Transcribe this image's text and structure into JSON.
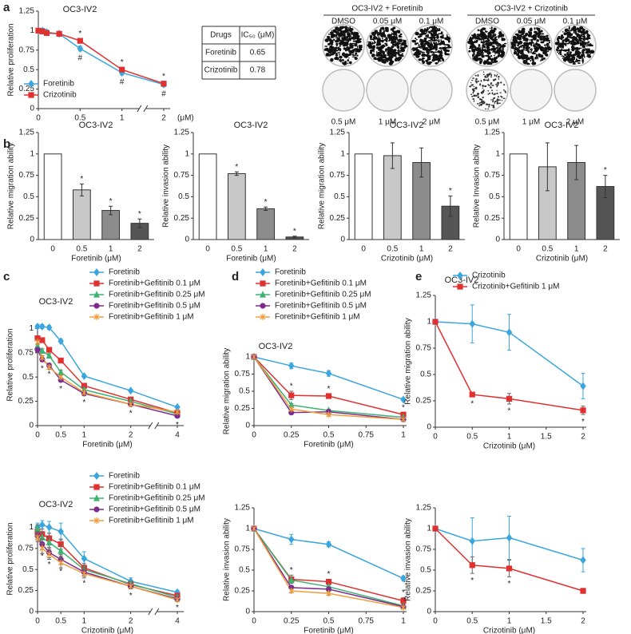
{
  "panels": [
    "a",
    "b",
    "c",
    "d",
    "e"
  ],
  "table": {
    "header": [
      "Drugs",
      "IC₅₀ (μM)"
    ],
    "rows": [
      [
        "Foretinib",
        0.65
      ],
      [
        "Crizotinib",
        0.78
      ]
    ]
  },
  "plates": {
    "groups": [
      {
        "title": "OC3-IV2 + Foretinib",
        "top_labels": [
          "DMSO",
          "0.05 μM",
          "0.1 μM"
        ],
        "bottom_labels": [
          "0.5 μM",
          "1 μM",
          "2 μM"
        ]
      },
      {
        "title": "OC3-IV2 + Crizotinib",
        "top_labels": [
          "DMSO",
          "0.05 μM",
          "0.1 μM"
        ],
        "bottom_labels": [
          "0.5 μM",
          "1 μM",
          "2 μM"
        ]
      }
    ]
  },
  "chart_data": [
    {
      "type": "line",
      "title": "OC3-IV2",
      "ylabel": "Relative proliferation",
      "xlabel": "(μM)",
      "legend": "lower left",
      "axis_break": true,
      "x": [
        0,
        0.05,
        0.1,
        0.25,
        0.5,
        1,
        2
      ],
      "xlim": [
        0,
        2
      ],
      "xticks": [
        0,
        0.5,
        1,
        2
      ],
      "ylim": [
        0,
        1.25
      ],
      "yticks": [
        0,
        0.25,
        0.5,
        0.75,
        1,
        1.25
      ],
      "series": [
        {
          "name": "Foretinib",
          "color": "#3aa6dd",
          "marker": "diamond",
          "annotation_position": "below",
          "values": [
            1.0,
            1.0,
            0.98,
            0.96,
            0.77,
            0.46,
            0.31
          ],
          "errors": [
            0.03,
            0.03,
            0.03,
            0.03,
            0.03,
            0.03,
            0.03
          ],
          "annotations": [
            null,
            null,
            null,
            null,
            "#",
            "#",
            "#"
          ]
        },
        {
          "name": "Crizotinib",
          "color": "#e03030",
          "marker": "square",
          "annotation_position": "above",
          "values": [
            1.0,
            0.99,
            0.97,
            0.96,
            0.87,
            0.5,
            0.32
          ],
          "errors": [
            0.03,
            0.03,
            0.03,
            0.03,
            0.03,
            0.03,
            0.03
          ],
          "annotations": [
            null,
            null,
            null,
            null,
            "*",
            "*",
            "*"
          ]
        }
      ]
    },
    {
      "type": "bar",
      "title": "OC3-IV2",
      "ylabel": "Relative migration ability",
      "xlabel": "Foretinib (μM)",
      "categories": [
        "0",
        "0.5",
        "1",
        "2"
      ],
      "values": [
        1,
        0.58,
        0.34,
        0.19
      ],
      "errors": [
        0,
        0.07,
        0.05,
        0.05
      ],
      "annotations": [
        null,
        "*",
        "*",
        "*"
      ],
      "colors": [
        "#ffffff",
        "#c8c8c8",
        "#8c8c8c",
        "#555555"
      ],
      "ylim": [
        0,
        1.25
      ],
      "yticks": [
        0,
        0.25,
        0.5,
        0.75,
        1,
        1.25
      ]
    },
    {
      "type": "bar",
      "title": "OC3-IV2",
      "ylabel": "Relative invasion ability",
      "xlabel": "Foretinib (μM)",
      "categories": [
        "0",
        "0.5",
        "1",
        "2"
      ],
      "values": [
        1,
        0.77,
        0.36,
        0.03
      ],
      "errors": [
        0,
        0.02,
        0.02,
        0.01
      ],
      "annotations": [
        null,
        "*",
        "*",
        "*"
      ],
      "colors": [
        "#ffffff",
        "#c8c8c8",
        "#8c8c8c",
        "#555555"
      ],
      "ylim": [
        0,
        1.25
      ],
      "yticks": [
        0,
        0.25,
        0.5,
        0.75,
        1,
        1.25
      ]
    },
    {
      "type": "bar",
      "title": "OC3-IV2",
      "ylabel": "Relative migration ability",
      "xlabel": "Crizotinib (μM)",
      "categories": [
        "0",
        "0.5",
        "1",
        "2"
      ],
      "values": [
        1,
        0.98,
        0.9,
        0.39
      ],
      "errors": [
        0,
        0.15,
        0.17,
        0.12
      ],
      "annotations": [
        null,
        null,
        null,
        "*"
      ],
      "colors": [
        "#ffffff",
        "#c8c8c8",
        "#8c8c8c",
        "#555555"
      ],
      "ylim": [
        0,
        1.25
      ],
      "yticks": [
        0,
        0.25,
        0.5,
        0.75,
        1,
        1.25
      ]
    },
    {
      "type": "bar",
      "title": "OC3-IV2",
      "ylabel": "Relative Invasion ability",
      "xlabel": "Crizotinib (μM)",
      "categories": [
        "0",
        "0.5",
        "1",
        "2"
      ],
      "values": [
        1,
        0.85,
        0.9,
        0.62
      ],
      "errors": [
        0,
        0.28,
        0.2,
        0.13
      ],
      "annotations": [
        null,
        null,
        null,
        "*"
      ],
      "colors": [
        "#ffffff",
        "#c8c8c8",
        "#8c8c8c",
        "#555555"
      ],
      "ylim": [
        0,
        1.25
      ],
      "yticks": [
        0,
        0.25,
        0.5,
        0.75,
        1,
        1.25
      ]
    },
    {
      "type": "line",
      "title": "OC3-IV2",
      "ylabel": "Relative proliferation",
      "xlabel": "Foretinib (μM)",
      "legend": "above",
      "axis_break": true,
      "x": [
        0,
        0.1,
        0.25,
        0.5,
        1,
        2,
        4
      ],
      "xlim": [
        0,
        4
      ],
      "xticks": [
        0,
        0.5,
        1,
        2,
        4
      ],
      "ylim": [
        0,
        1.25
      ],
      "yticks": [
        0,
        0.25,
        0.5,
        0.75,
        1
      ],
      "series": [
        {
          "name": "Foretinib",
          "color": "#3aa6dd",
          "marker": "diamond",
          "values": [
            1.02,
            1.02,
            1.01,
            0.87,
            0.51,
            0.36,
            0.19
          ],
          "errors": [
            0.02,
            0.02,
            0.02,
            0.02,
            0.01,
            0.01,
            0.01
          ]
        },
        {
          "name": "Foretinib+Gefitinib 0.1 μM",
          "color": "#e03030",
          "marker": "square",
          "values": [
            0.9,
            0.88,
            0.78,
            0.67,
            0.41,
            0.27,
            0.13
          ],
          "errors": [
            0.02,
            0.02,
            0.02,
            0.02,
            0.02,
            0.02,
            0.02
          ]
        },
        {
          "name": "Foretinib+Gefitinib 0.25 μM",
          "color": "#3cb371",
          "marker": "triangle",
          "values": [
            0.82,
            0.77,
            0.72,
            0.55,
            0.37,
            0.25,
            0.12
          ],
          "errors": [
            0.02,
            0.02,
            0.02,
            0.02,
            0.02,
            0.02,
            0.02
          ]
        },
        {
          "name": "Foretinib+Gefitinib 0.5 μM",
          "color": "#7b2d8e",
          "marker": "circle",
          "annotation_position": "below",
          "values": [
            0.78,
            0.68,
            0.62,
            0.47,
            0.33,
            0.22,
            0.1
          ],
          "errors": [
            0.02,
            0.02,
            0.02,
            0.02,
            0.02,
            0.02,
            0.02
          ],
          "annotations": [
            null,
            "*",
            "*",
            "*",
            "*",
            "*",
            "*"
          ]
        },
        {
          "name": "Foretinib+Gefitinib 1 μM",
          "color": "#f39c3c",
          "marker": "cross",
          "values": [
            0.86,
            0.7,
            0.6,
            0.5,
            0.34,
            0.22,
            0.14
          ],
          "errors": [
            0.02,
            0.02,
            0.02,
            0.02,
            0.02,
            0.02,
            0.02
          ]
        }
      ]
    },
    {
      "type": "line",
      "title": "OC3-IV2",
      "ylabel": "Relative migration ability",
      "xlabel": "Foretinib (μM)",
      "legend": "above",
      "x": [
        0,
        0.25,
        0.5,
        1
      ],
      "xlim": [
        0,
        1
      ],
      "xticks": [
        0,
        0.25,
        0.5,
        0.75,
        1
      ],
      "ylim": [
        0,
        1
      ],
      "yticks": [
        0,
        0.25,
        0.5,
        0.75,
        1
      ],
      "series": [
        {
          "name": "Foretinib",
          "color": "#3aa6dd",
          "marker": "diamond",
          "values": [
            1,
            0.87,
            0.76,
            0.38
          ],
          "errors": [
            0,
            0.04,
            0.04,
            0.02
          ]
        },
        {
          "name": "Foretinib+Gefitinib 0.1 μM",
          "color": "#e03030",
          "marker": "square",
          "annotation_position": "above",
          "values": [
            1,
            0.44,
            0.43,
            0.16
          ],
          "errors": [
            0,
            0.06,
            0.03,
            0.03
          ],
          "annotations": [
            null,
            "*",
            "*",
            "*"
          ]
        },
        {
          "name": "Foretinib+Gefitinib 0.25 μM",
          "color": "#3cb371",
          "marker": "triangle",
          "values": [
            1,
            0.3,
            0.22,
            0.12
          ],
          "errors": [
            0,
            0.02,
            0.02,
            0.01
          ]
        },
        {
          "name": "Foretinib+Gefitinib 0.5 μM",
          "color": "#7b2d8e",
          "marker": "circle",
          "values": [
            1,
            0.19,
            0.2,
            0.09
          ],
          "errors": [
            0,
            0.02,
            0.02,
            0.01
          ]
        },
        {
          "name": "Foretinib+Gefitinib 1 μM",
          "color": "#f39c3c",
          "marker": "cross",
          "values": [
            1,
            0.24,
            0.16,
            0.09
          ],
          "errors": [
            0,
            0.02,
            0.02,
            0.01
          ]
        }
      ]
    },
    {
      "type": "line",
      "title": "OC3-IV2",
      "ylabel": "Relative migration ability",
      "xlabel": "Crizotinib (μM)",
      "legend": "above",
      "x": [
        0,
        0.5,
        1,
        2
      ],
      "xlim": [
        0,
        2
      ],
      "xticks": [
        0,
        0.5,
        1,
        1.5,
        2
      ],
      "ylim": [
        0,
        1.25
      ],
      "yticks": [
        0,
        0.25,
        0.5,
        0.75,
        1,
        1.25
      ],
      "series": [
        {
          "name": "Crizotinib",
          "color": "#3aa6dd",
          "marker": "diamond",
          "values": [
            1,
            0.98,
            0.9,
            0.39
          ],
          "errors": [
            0,
            0.18,
            0.17,
            0.12
          ]
        },
        {
          "name": "Crizotinib+Gefitinib 1 μM",
          "color": "#e03030",
          "marker": "square",
          "annotation_position": "below",
          "values": [
            1,
            0.31,
            0.27,
            0.16
          ],
          "errors": [
            0,
            0.02,
            0.05,
            0.04
          ],
          "annotations": [
            null,
            "*",
            "*",
            "*"
          ]
        }
      ]
    },
    {
      "type": "line",
      "title": "OC3-IV2",
      "ylabel": "Relative proliferation",
      "xlabel": "Crizotinib (μM)",
      "legend": "above",
      "axis_break": true,
      "x": [
        0,
        0.1,
        0.25,
        0.5,
        1,
        2,
        4
      ],
      "xlim": [
        0,
        4
      ],
      "xticks": [
        0,
        0.5,
        1,
        2,
        4
      ],
      "ylim": [
        0,
        1.25
      ],
      "yticks": [
        0,
        0.25,
        0.5,
        0.75,
        1
      ],
      "series": [
        {
          "name": "Foretinib",
          "color": "#3aa6dd",
          "marker": "diamond",
          "values": [
            1.0,
            1.03,
            1.0,
            0.95,
            0.63,
            0.36,
            0.23
          ],
          "errors": [
            0.05,
            0.05,
            0.07,
            0.1,
            0.08,
            0.04,
            0.02
          ]
        },
        {
          "name": "Foretinib+Gefitinib 0.1 μM",
          "color": "#e03030",
          "marker": "square",
          "values": [
            0.95,
            0.92,
            0.87,
            0.8,
            0.52,
            0.32,
            0.19
          ],
          "errors": [
            0.05,
            0.06,
            0.06,
            0.06,
            0.05,
            0.03,
            0.02
          ]
        },
        {
          "name": "Foretinib+Gefitinib 0.25 μM",
          "color": "#3cb371",
          "marker": "triangle",
          "values": [
            0.98,
            0.88,
            0.82,
            0.72,
            0.5,
            0.33,
            0.17
          ],
          "errors": [
            0.05,
            0.06,
            0.06,
            0.06,
            0.05,
            0.03,
            0.02
          ]
        },
        {
          "name": "Foretinib+Gefitinib 0.5 μM",
          "color": "#7b2d8e",
          "marker": "circle",
          "annotation_position": "below",
          "values": [
            0.9,
            0.8,
            0.7,
            0.62,
            0.47,
            0.3,
            0.15
          ],
          "errors": [
            0.05,
            0.06,
            0.06,
            0.06,
            0.05,
            0.03,
            0.02
          ],
          "annotations": [
            null,
            "*",
            "*",
            "*",
            "*",
            "*",
            "*"
          ]
        },
        {
          "name": "Foretinib+Gefitinib 1 μM",
          "color": "#f39c3c",
          "marker": "cross",
          "values": [
            0.88,
            0.75,
            0.68,
            0.58,
            0.45,
            0.3,
            0.14
          ],
          "errors": [
            0.05,
            0.06,
            0.06,
            0.06,
            0.05,
            0.03,
            0.02
          ]
        }
      ]
    },
    {
      "type": "line",
      "ylabel": "Relative invasion ability",
      "xlabel": "Foretinib (μM)",
      "x": [
        0,
        0.25,
        0.5,
        1
      ],
      "xlim": [
        0,
        1
      ],
      "xticks": [
        0,
        0.25,
        0.5,
        0.75,
        1
      ],
      "ylim": [
        0,
        1.25
      ],
      "yticks": [
        0,
        0.25,
        0.5,
        0.75,
        1,
        1.25
      ],
      "series": [
        {
          "name": "Foretinib",
          "color": "#3aa6dd",
          "marker": "diamond",
          "values": [
            1,
            0.87,
            0.81,
            0.4
          ],
          "errors": [
            0,
            0.06,
            0.03,
            0.03
          ]
        },
        {
          "name": "Foretinib+Gefitinib 0.1 μM",
          "color": "#e03030",
          "marker": "square",
          "annotation_position": "above",
          "values": [
            1,
            0.39,
            0.36,
            0.13
          ],
          "errors": [
            0,
            0.05,
            0.03,
            0.04
          ],
          "annotations": [
            null,
            "*",
            "*",
            "*"
          ]
        },
        {
          "name": "Foretinib+Gefitinib 0.25 μM",
          "color": "#3cb371",
          "marker": "triangle",
          "values": [
            1,
            0.38,
            0.3,
            0.07
          ],
          "errors": [
            0,
            0.02,
            0.02,
            0.01
          ]
        },
        {
          "name": "Foretinib+Gefitinib 0.5 μM",
          "color": "#7b2d8e",
          "marker": "circle",
          "values": [
            1,
            0.29,
            0.27,
            0.06
          ],
          "errors": [
            0,
            0.02,
            0.02,
            0.01
          ]
        },
        {
          "name": "Foretinib+Gefitinib 1 μM",
          "color": "#f39c3c",
          "marker": "cross",
          "values": [
            1,
            0.25,
            0.22,
            0.05
          ],
          "errors": [
            0,
            0.02,
            0.02,
            0.01
          ]
        }
      ]
    },
    {
      "type": "line",
      "ylabel": "Relative invasion ability",
      "xlabel": "Crizotinib (μM)",
      "x": [
        0,
        0.5,
        1,
        2
      ],
      "xlim": [
        0,
        2
      ],
      "xticks": [
        0,
        0.5,
        1,
        1.5,
        2
      ],
      "ylim": [
        0,
        1.25
      ],
      "yticks": [
        0,
        0.25,
        0.5,
        0.75,
        1,
        1.25
      ],
      "series": [
        {
          "name": "Crizotinib",
          "color": "#3aa6dd",
          "marker": "diamond",
          "values": [
            1,
            0.85,
            0.89,
            0.62
          ],
          "errors": [
            0,
            0.28,
            0.26,
            0.14
          ]
        },
        {
          "name": "Crizotinib+Gefitinib 1 μM",
          "color": "#e03030",
          "marker": "square",
          "annotation_position": "below",
          "values": [
            1,
            0.56,
            0.52,
            0.25
          ],
          "errors": [
            0,
            0.1,
            0.1,
            0.03
          ],
          "annotations": [
            null,
            "*",
            "*",
            null
          ]
        }
      ]
    }
  ]
}
